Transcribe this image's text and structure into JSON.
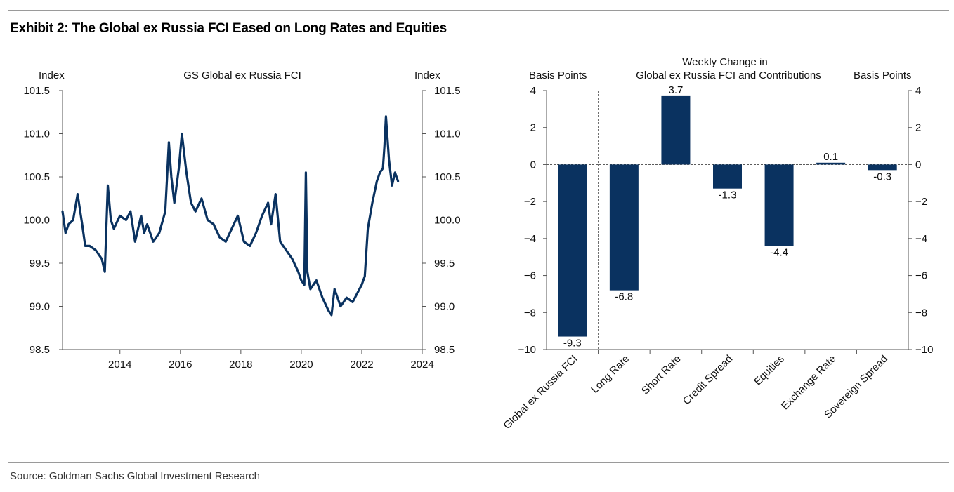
{
  "exhibit": {
    "title": "Exhibit 2: The Global ex Russia FCI Eased on Long Rates and Equities",
    "source": "Source: Goldman Sachs Global Investment Research"
  },
  "colors": {
    "series": "#0a3260",
    "zero_line": "#444444",
    "axis": "#555555",
    "rule": "#9a9a9a"
  },
  "chart_data": [
    {
      "type": "line",
      "title": "GS Global ex Russia FCI",
      "ylabel_left": "Index",
      "ylabel_right": "Index",
      "xlim": [
        2012.1,
        2024.0
      ],
      "ylim": [
        98.5,
        101.5
      ],
      "xticks": [
        2014,
        2016,
        2018,
        2020,
        2022,
        2024
      ],
      "xtick_labels": [
        "2014",
        "2016",
        "2018",
        "2020",
        "2022",
        "2024"
      ],
      "yticks": [
        98.5,
        99.0,
        99.5,
        100.0,
        100.5,
        101.0,
        101.5
      ],
      "ytick_labels": [
        "98.5",
        "99.0",
        "99.5",
        "100.0",
        "100.5",
        "101.0",
        "101.5"
      ],
      "reference_line": 100.0,
      "series": [
        {
          "name": "GS Global ex Russia FCI",
          "x": [
            2012.1,
            2012.2,
            2012.3,
            2012.45,
            2012.6,
            2012.75,
            2012.85,
            2013.0,
            2013.2,
            2013.4,
            2013.5,
            2013.6,
            2013.7,
            2013.8,
            2014.0,
            2014.2,
            2014.35,
            2014.5,
            2014.7,
            2014.8,
            2014.9,
            2015.1,
            2015.3,
            2015.5,
            2015.62,
            2015.7,
            2015.8,
            2015.95,
            2016.05,
            2016.2,
            2016.35,
            2016.5,
            2016.7,
            2016.9,
            2017.1,
            2017.3,
            2017.5,
            2017.7,
            2017.9,
            2018.1,
            2018.3,
            2018.5,
            2018.7,
            2018.9,
            2019.0,
            2019.15,
            2019.3,
            2019.5,
            2019.7,
            2019.9,
            2020.0,
            2020.1,
            2020.15,
            2020.2,
            2020.3,
            2020.5,
            2020.7,
            2020.9,
            2021.0,
            2021.1,
            2021.3,
            2021.5,
            2021.7,
            2021.85,
            2022.0,
            2022.1,
            2022.2,
            2022.35,
            2022.5,
            2022.6,
            2022.7,
            2022.75,
            2022.8,
            2022.9,
            2023.0,
            2023.1,
            2023.2
          ],
          "y": [
            100.1,
            99.85,
            99.95,
            100.0,
            100.3,
            99.95,
            99.7,
            99.7,
            99.65,
            99.55,
            99.4,
            100.4,
            100.0,
            99.9,
            100.05,
            100.0,
            100.1,
            99.75,
            100.05,
            99.85,
            99.95,
            99.75,
            99.85,
            100.1,
            100.9,
            100.5,
            100.2,
            100.6,
            101.0,
            100.55,
            100.2,
            100.1,
            100.25,
            100.0,
            99.95,
            99.8,
            99.75,
            99.9,
            100.05,
            99.75,
            99.7,
            99.85,
            100.05,
            100.2,
            99.95,
            100.3,
            99.75,
            99.65,
            99.55,
            99.4,
            99.3,
            99.25,
            100.55,
            99.4,
            99.2,
            99.3,
            99.1,
            98.95,
            98.9,
            99.2,
            99.0,
            99.1,
            99.05,
            99.15,
            99.25,
            99.35,
            99.9,
            100.2,
            100.45,
            100.55,
            100.6,
            100.85,
            101.2,
            100.7,
            100.4,
            100.55,
            100.45
          ]
        }
      ]
    },
    {
      "type": "bar",
      "title_line1": "Weekly Change in",
      "title_line2": "Global ex Russia FCI and Contributions",
      "ylabel_left": "Basis Points",
      "ylabel_right": "Basis Points",
      "ylim": [
        -10,
        4
      ],
      "yticks": [
        -10,
        -8,
        -6,
        -4,
        -2,
        0,
        2,
        4
      ],
      "ytick_labels": [
        "−10",
        "−8",
        "−6",
        "−4",
        "−2",
        "0",
        "2",
        "4"
      ],
      "categories": [
        "Global ex Russia FCI",
        "Long Rate",
        "Short Rate",
        "Credit Spread",
        "Equities",
        "Exchange Rate",
        "Sovereign Spread"
      ],
      "values": [
        -9.3,
        -6.8,
        3.7,
        -1.3,
        -4.4,
        0.1,
        -0.3
      ],
      "value_labels": [
        "-9.3",
        "-6.8",
        "3.7",
        "-1.3",
        "-4.4",
        "0.1",
        "-0.3"
      ]
    }
  ]
}
